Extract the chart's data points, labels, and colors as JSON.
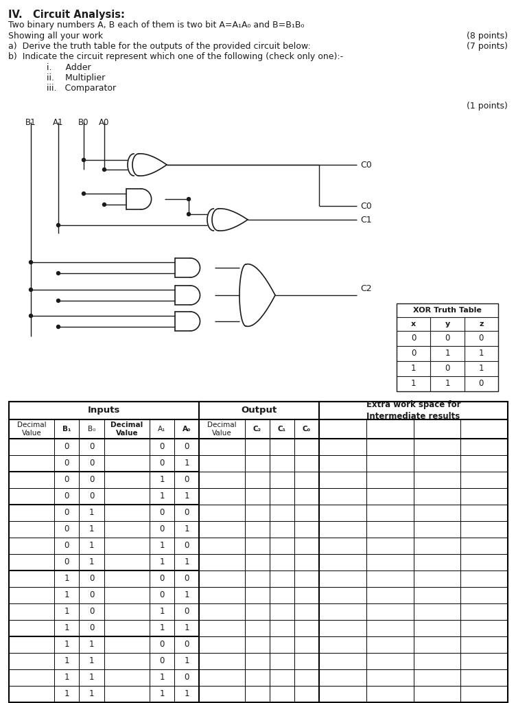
{
  "title_bold": "IV.   Circuit Analysis:",
  "subtitle": "Two binary numbers A, B each of them is two bit A=A₁A₀ and B=B₁B₀",
  "line2": "Showing all your work",
  "line3a": "a)  Derive the truth table for the outputs of the provided circuit below:",
  "line3b": "b)  Indicate the circuit represent which one of the following (check only one):-",
  "items": [
    "i.     Adder",
    "ii.    Multiplier",
    "iii.   Comparator"
  ],
  "points": [
    "(8 points)",
    "(7 points)",
    "(1 points)"
  ],
  "xor_table_title": "XOR Truth Table",
  "xor_headers": [
    "x",
    "y",
    "z"
  ],
  "xor_data": [
    [
      0,
      0,
      0
    ],
    [
      0,
      1,
      1
    ],
    [
      1,
      0,
      1
    ],
    [
      1,
      1,
      0
    ]
  ],
  "truth_table": [
    [
      0,
      0,
      0,
      0
    ],
    [
      0,
      0,
      0,
      1
    ],
    [
      0,
      0,
      1,
      0
    ],
    [
      0,
      0,
      1,
      1
    ],
    [
      0,
      1,
      0,
      0
    ],
    [
      0,
      1,
      0,
      1
    ],
    [
      0,
      1,
      1,
      0
    ],
    [
      0,
      1,
      1,
      1
    ],
    [
      1,
      0,
      0,
      0
    ],
    [
      1,
      0,
      0,
      1
    ],
    [
      1,
      0,
      1,
      0
    ],
    [
      1,
      0,
      1,
      1
    ],
    [
      1,
      1,
      0,
      0
    ],
    [
      1,
      1,
      0,
      1
    ],
    [
      1,
      1,
      1,
      0
    ],
    [
      1,
      1,
      1,
      1
    ]
  ],
  "bg_color": "#ffffff",
  "text_color": "#1a1a1a",
  "gate_lw": 1.2,
  "line_lw": 1.0
}
